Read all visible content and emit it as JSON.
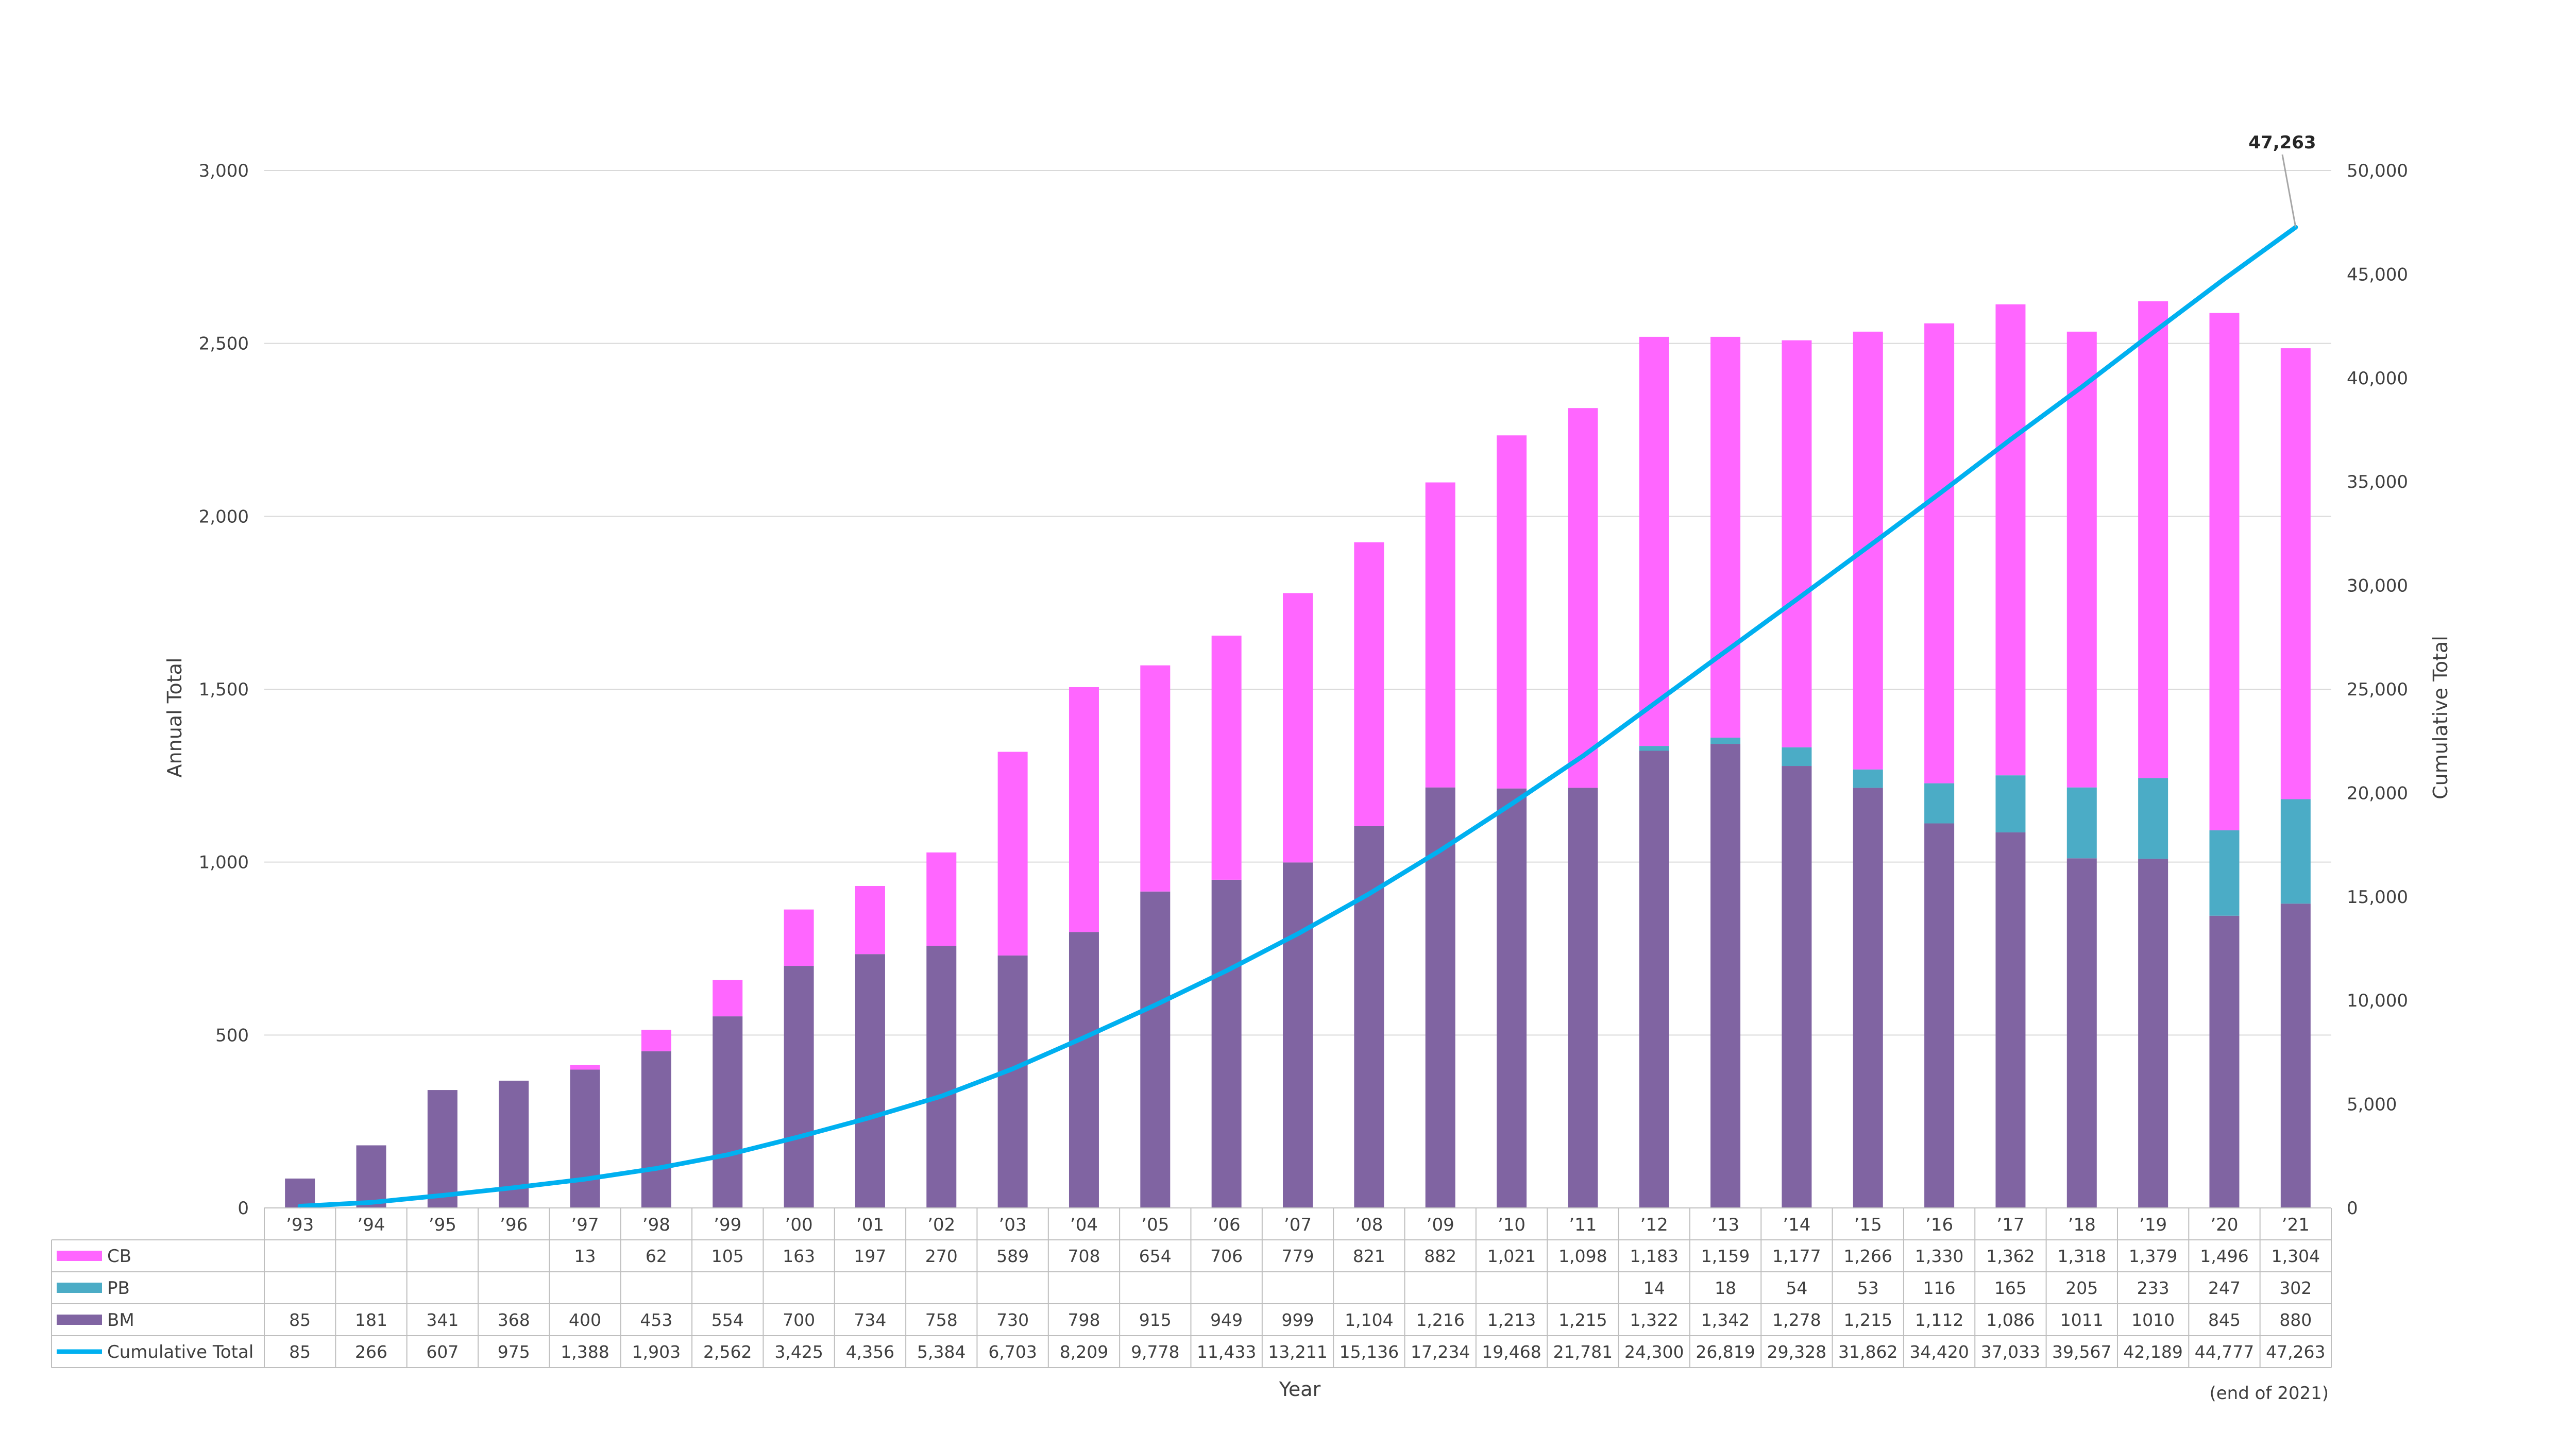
{
  "chart_data": {
    "type": "bar",
    "subtype": "stacked bar with cumulative line and data table",
    "categories": [
      "’93",
      "’94",
      "’95",
      "’96",
      "’97",
      "’98",
      "’99",
      "’00",
      "’01",
      "’02",
      "’03",
      "’04",
      "’05",
      "’06",
      "’07",
      "’08",
      "’09",
      "’10",
      "’11",
      "’12",
      "’13",
      "’14",
      "’15",
      "’16",
      "’17",
      "’18",
      "’19",
      "’20",
      "’21"
    ],
    "series": [
      {
        "name": "CB",
        "axis": "left",
        "color": "#ff66ff",
        "values": [
          null,
          null,
          null,
          null,
          13,
          62,
          105,
          163,
          197,
          270,
          589,
          708,
          654,
          706,
          779,
          821,
          882,
          1021,
          1098,
          1183,
          1159,
          1177,
          1266,
          1330,
          1362,
          1318,
          1379,
          1496,
          1304
        ],
        "labels": [
          "",
          "",
          "",
          "",
          "13",
          "62",
          "105",
          "163",
          "197",
          "270",
          "589",
          "708",
          "654",
          "706",
          "779",
          "821",
          "882",
          "1,021",
          "1,098",
          "1,183",
          "1,159",
          "1,177",
          "1,266",
          "1,330",
          "1,362",
          "1,318",
          "1,379",
          "1,496",
          "1,304"
        ]
      },
      {
        "name": "PB",
        "axis": "left",
        "color": "#4bacc6",
        "values": [
          null,
          null,
          null,
          null,
          null,
          null,
          null,
          null,
          null,
          null,
          null,
          null,
          null,
          null,
          null,
          null,
          null,
          null,
          null,
          14,
          18,
          54,
          53,
          116,
          165,
          205,
          233,
          247,
          302
        ],
        "labels": [
          "",
          "",
          "",
          "",
          "",
          "",
          "",
          "",
          "",
          "",
          "",
          "",
          "",
          "",
          "",
          "",
          "",
          "",
          "",
          "14",
          "18",
          "54",
          "53",
          "116",
          "165",
          "205",
          "233",
          "247",
          "302"
        ]
      },
      {
        "name": "BM",
        "axis": "left",
        "color": "#8064a2",
        "values": [
          85,
          181,
          341,
          368,
          400,
          453,
          554,
          700,
          734,
          758,
          730,
          798,
          915,
          949,
          999,
          1104,
          1216,
          1213,
          1215,
          1322,
          1342,
          1278,
          1215,
          1112,
          1086,
          1011,
          1010,
          845,
          880
        ],
        "labels": [
          "85",
          "181",
          "341",
          "368",
          "400",
          "453",
          "554",
          "700",
          "734",
          "758",
          "730",
          "798",
          "915",
          "949",
          "999",
          "1,104",
          "1,216",
          "1,213",
          "1,215",
          "1,322",
          "1,342",
          "1,278",
          "1,215",
          "1,112",
          "1,086",
          "1011",
          "1010",
          "845",
          "880"
        ]
      },
      {
        "name": "Cumulative Total",
        "axis": "right",
        "type": "line",
        "color": "#00b0f0",
        "values": [
          85,
          266,
          607,
          975,
          1388,
          1903,
          2562,
          3425,
          4356,
          5384,
          6703,
          8209,
          9778,
          11433,
          13211,
          15136,
          17234,
          19468,
          21781,
          24300,
          26819,
          29328,
          31862,
          34420,
          37033,
          39567,
          42189,
          44777,
          47263
        ],
        "labels": [
          "85",
          "266",
          "607",
          "975",
          "1,388",
          "1,903",
          "2,562",
          "3,425",
          "4,356",
          "5,384",
          "6,703",
          "8,209",
          "9,778",
          "11,433",
          "13,211",
          "15,136",
          "17,234",
          "19,468",
          "21,781",
          "24,300",
          "26,819",
          "29,328",
          "31,862",
          "34,420",
          "37,033",
          "39,567",
          "42,189",
          "44,777",
          "47,263"
        ]
      }
    ],
    "table_row_order": [
      "CB",
      "PB",
      "BM",
      "Cumulative Total"
    ],
    "stack_order_bottom_to_top": [
      "BM",
      "PB",
      "CB"
    ],
    "xlabel": "Year",
    "ylabel": "Annual Total",
    "y2label": "Cumulative Total",
    "ylim": [
      0,
      3000
    ],
    "y2lim": [
      0,
      50000
    ],
    "yticks": [
      0,
      500,
      1000,
      1500,
      2000,
      2500,
      3000
    ],
    "ytick_labels": [
      "0",
      "500",
      "1,000",
      "1,500",
      "2,000",
      "2,500",
      "3,000"
    ],
    "y2ticks": [
      0,
      5000,
      10000,
      15000,
      20000,
      25000,
      30000,
      35000,
      40000,
      45000,
      50000
    ],
    "y2tick_labels": [
      "0",
      "5,000",
      "10,000",
      "15,000",
      "20,000",
      "25,000",
      "30,000",
      "35,000",
      "40,000",
      "45,000",
      "50,000"
    ],
    "grid": "horizontal",
    "legend": "data table",
    "annotations": {
      "last_point_callout": "47,263",
      "footnote": "(end of 2021)"
    }
  }
}
